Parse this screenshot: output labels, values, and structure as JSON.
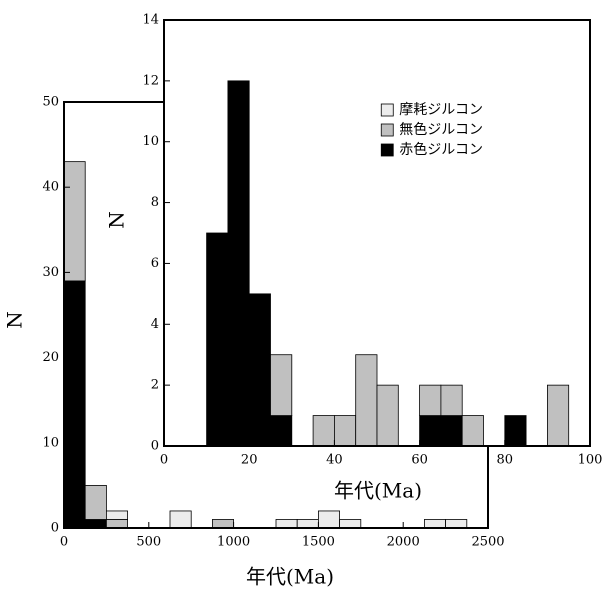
{
  "chart_data": [
    {
      "type": "histogram",
      "xlabel": "年代(Ma)",
      "ylabel": "N",
      "bins": [
        0,
        125,
        250,
        375,
        500,
        625,
        750,
        875,
        1000,
        1125,
        1250,
        1375,
        1500,
        1625,
        1750,
        1875,
        2000,
        2125,
        2250,
        2375,
        2500
      ],
      "series": [
        {
          "name": "赤色ジルコン",
          "color": "#000000",
          "values": [
            29,
            1,
            0,
            0,
            0,
            0,
            0,
            0,
            0,
            0,
            0,
            0,
            0,
            0,
            0,
            0,
            0,
            0,
            0,
            0
          ]
        },
        {
          "name": "無色ジルコン",
          "color": "#c0c0c0",
          "values": [
            14,
            4,
            1,
            0,
            0,
            0,
            0,
            1,
            0,
            0,
            0,
            0,
            0,
            0,
            0,
            0,
            0,
            0,
            0,
            0
          ]
        },
        {
          "name": "摩耗ジルコン",
          "color": "#ececec",
          "values": [
            0,
            0,
            1,
            0,
            0,
            2,
            0,
            0,
            0,
            0,
            1,
            1,
            2,
            1,
            0,
            0,
            0,
            1,
            1,
            0
          ]
        }
      ],
      "xlim": [
        0,
        2500
      ],
      "xticks": [
        0,
        500,
        1000,
        1500,
        2000,
        2500
      ],
      "ylim": [
        0,
        50
      ],
      "yticks": [
        0,
        10,
        20,
        30,
        40,
        50
      ]
    },
    {
      "type": "histogram",
      "xlabel": "年代(Ma)",
      "ylabel": "N",
      "bins": [
        0,
        5,
        10,
        15,
        20,
        25,
        30,
        35,
        40,
        45,
        50,
        55,
        60,
        65,
        70,
        75,
        80,
        85,
        90,
        95,
        100
      ],
      "series": [
        {
          "name": "赤色ジルコン",
          "color": "#000000",
          "values": [
            0,
            0,
            7,
            12,
            5,
            1,
            0,
            0,
            0,
            0,
            0,
            0,
            1,
            1,
            0,
            0,
            1,
            0,
            0,
            0
          ]
        },
        {
          "name": "無色ジルコン",
          "color": "#c0c0c0",
          "values": [
            0,
            0,
            0,
            0,
            0,
            2,
            0,
            1,
            1,
            3,
            2,
            0,
            1,
            1,
            1,
            0,
            0,
            0,
            2,
            0
          ]
        },
        {
          "name": "摩耗ジルコン",
          "color": "#ececec",
          "values": [
            0,
            0,
            0,
            0,
            0,
            0,
            0,
            0,
            0,
            0,
            0,
            0,
            0,
            0,
            0,
            0,
            0,
            0,
            0,
            0
          ]
        }
      ],
      "xlim": [
        0,
        100
      ],
      "xticks": [
        0,
        20,
        40,
        60,
        80,
        100
      ],
      "ylim": [
        0,
        14
      ],
      "yticks": [
        0,
        2,
        4,
        6,
        8,
        10,
        12,
        14
      ],
      "legend": true
    }
  ]
}
